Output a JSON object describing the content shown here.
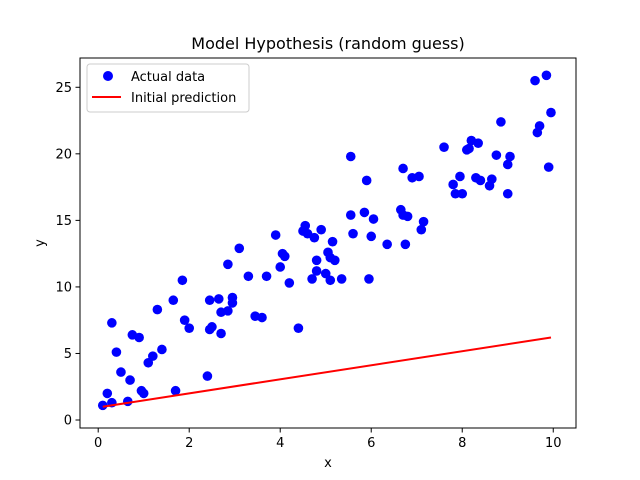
{
  "chart_data": {
    "type": "scatter",
    "title": "Model Hypothesis (random guess)",
    "xlabel": "x",
    "ylabel": "y",
    "xlim": [
      -0.4,
      10.5
    ],
    "ylim": [
      -0.6,
      27.2
    ],
    "xticks": [
      0,
      2,
      4,
      6,
      8,
      10
    ],
    "yticks": [
      0,
      5,
      10,
      15,
      20,
      25
    ],
    "grid": false,
    "legend_position": "top-left",
    "legend": [
      "Actual data",
      "Initial prediction"
    ],
    "colors": {
      "scatter": "#0000ff",
      "line": "#ff0000"
    },
    "series": [
      {
        "name": "Actual data",
        "kind": "scatter",
        "points": [
          [
            0.1,
            1.1
          ],
          [
            0.2,
            2.0
          ],
          [
            0.3,
            7.3
          ],
          [
            0.3,
            1.3
          ],
          [
            0.4,
            5.1
          ],
          [
            0.5,
            3.6
          ],
          [
            0.65,
            1.4
          ],
          [
            0.7,
            3.0
          ],
          [
            0.75,
            6.4
          ],
          [
            0.9,
            6.2
          ],
          [
            0.95,
            2.2
          ],
          [
            1.0,
            2.0
          ],
          [
            1.1,
            4.3
          ],
          [
            1.2,
            4.8
          ],
          [
            1.3,
            8.3
          ],
          [
            1.4,
            5.3
          ],
          [
            1.65,
            9.0
          ],
          [
            1.7,
            2.2
          ],
          [
            1.85,
            10.5
          ],
          [
            1.9,
            7.5
          ],
          [
            2.0,
            6.9
          ],
          [
            2.4,
            3.3
          ],
          [
            2.45,
            9.0
          ],
          [
            2.45,
            6.8
          ],
          [
            2.5,
            7.0
          ],
          [
            2.65,
            9.1
          ],
          [
            2.7,
            8.1
          ],
          [
            2.7,
            6.5
          ],
          [
            2.85,
            11.7
          ],
          [
            2.85,
            8.2
          ],
          [
            2.95,
            9.2
          ],
          [
            2.95,
            8.8
          ],
          [
            3.1,
            12.9
          ],
          [
            3.3,
            10.8
          ],
          [
            3.45,
            7.8
          ],
          [
            3.6,
            7.7
          ],
          [
            3.7,
            10.8
          ],
          [
            3.9,
            13.9
          ],
          [
            4.0,
            11.5
          ],
          [
            4.05,
            12.5
          ],
          [
            4.1,
            12.3
          ],
          [
            4.2,
            10.3
          ],
          [
            4.4,
            6.9
          ],
          [
            4.5,
            14.2
          ],
          [
            4.55,
            14.6
          ],
          [
            4.6,
            14.0
          ],
          [
            4.7,
            10.6
          ],
          [
            4.75,
            13.7
          ],
          [
            4.8,
            12.0
          ],
          [
            4.8,
            11.2
          ],
          [
            4.9,
            14.3
          ],
          [
            5.0,
            11.0
          ],
          [
            5.05,
            12.6
          ],
          [
            5.1,
            12.2
          ],
          [
            5.1,
            10.5
          ],
          [
            5.15,
            13.4
          ],
          [
            5.2,
            12.0
          ],
          [
            5.35,
            10.6
          ],
          [
            5.55,
            19.8
          ],
          [
            5.55,
            15.4
          ],
          [
            5.6,
            14.0
          ],
          [
            5.85,
            15.6
          ],
          [
            5.9,
            18.0
          ],
          [
            5.95,
            10.6
          ],
          [
            6.0,
            13.8
          ],
          [
            6.05,
            15.1
          ],
          [
            6.35,
            13.2
          ],
          [
            6.65,
            15.8
          ],
          [
            6.7,
            18.9
          ],
          [
            6.7,
            15.4
          ],
          [
            6.75,
            13.2
          ],
          [
            6.8,
            15.3
          ],
          [
            6.9,
            18.2
          ],
          [
            7.05,
            18.3
          ],
          [
            7.1,
            14.3
          ],
          [
            7.15,
            14.9
          ],
          [
            7.6,
            20.5
          ],
          [
            7.8,
            17.7
          ],
          [
            7.85,
            17.0
          ],
          [
            7.95,
            18.3
          ],
          [
            8.0,
            17.0
          ],
          [
            8.1,
            20.3
          ],
          [
            8.15,
            20.4
          ],
          [
            8.2,
            21.0
          ],
          [
            8.3,
            18.2
          ],
          [
            8.35,
            20.8
          ],
          [
            8.4,
            18.0
          ],
          [
            8.6,
            17.6
          ],
          [
            8.65,
            18.1
          ],
          [
            8.75,
            19.9
          ],
          [
            8.85,
            22.4
          ],
          [
            9.0,
            19.2
          ],
          [
            9.0,
            17.0
          ],
          [
            9.05,
            19.8
          ],
          [
            9.6,
            25.5
          ],
          [
            9.65,
            21.6
          ],
          [
            9.7,
            22.1
          ],
          [
            9.85,
            25.9
          ],
          [
            9.9,
            19.0
          ],
          [
            9.95,
            23.1
          ]
        ]
      },
      {
        "name": "Initial prediction",
        "kind": "line",
        "points": [
          [
            0.1,
            1.0
          ],
          [
            9.95,
            6.2
          ]
        ]
      }
    ]
  }
}
